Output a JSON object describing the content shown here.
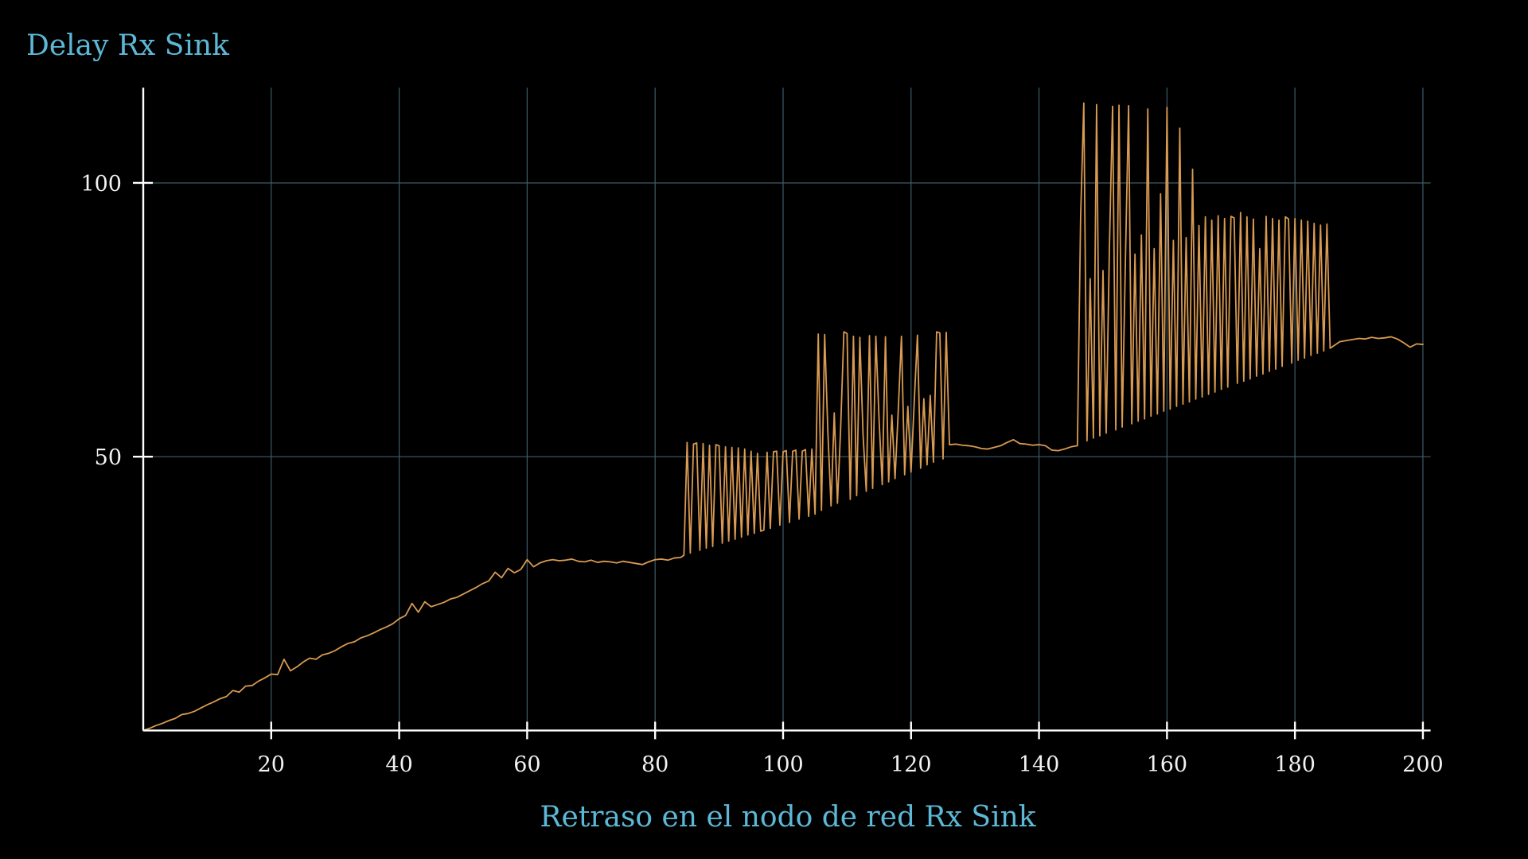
{
  "chart_data": {
    "type": "line",
    "title": "Delay Rx Sink",
    "xlabel": "Retraso en el nodo de red Rx Sink",
    "xlim": [
      0,
      201.2
    ],
    "ylim": [
      0,
      117.4
    ],
    "xticks": [
      20,
      40,
      60,
      80,
      100,
      120,
      140,
      160,
      180,
      200
    ],
    "yticks": [
      50,
      100
    ],
    "grid": true,
    "legend": "none",
    "colors": {
      "background": "#000000",
      "title": "#5cb8d6",
      "line": "#d99a52",
      "axis": "#ffffff",
      "grid": "#3d5c69",
      "tick_label": "#f2f2f2"
    },
    "series": [
      {
        "points": [
          [
            0,
            0
          ],
          [
            1,
            0.4
          ],
          [
            2,
            0.9
          ],
          [
            3,
            1.3
          ],
          [
            4,
            1.8
          ],
          [
            5,
            2.2
          ],
          [
            6,
            2.9
          ],
          [
            7,
            3.1
          ],
          [
            8,
            3.5
          ],
          [
            9,
            4.1
          ],
          [
            10,
            4.7
          ],
          [
            11,
            5.2
          ],
          [
            12,
            5.8
          ],
          [
            13,
            6.2
          ],
          [
            14,
            7.3
          ],
          [
            15,
            7.0
          ],
          [
            16,
            8.1
          ],
          [
            17,
            8.2
          ],
          [
            18,
            9.0
          ],
          [
            19,
            9.6
          ],
          [
            20,
            10.3
          ],
          [
            21,
            10.2
          ],
          [
            22,
            13.0
          ],
          [
            23,
            10.9
          ],
          [
            24,
            11.6
          ],
          [
            25,
            12.5
          ],
          [
            26,
            13.2
          ],
          [
            27,
            13.0
          ],
          [
            28,
            13.8
          ],
          [
            29,
            14.1
          ],
          [
            30,
            14.6
          ],
          [
            31,
            15.3
          ],
          [
            32,
            15.9
          ],
          [
            33,
            16.2
          ],
          [
            34,
            16.9
          ],
          [
            35,
            17.3
          ],
          [
            36,
            17.8
          ],
          [
            37,
            18.4
          ],
          [
            38,
            18.9
          ],
          [
            39,
            19.5
          ],
          [
            40,
            20.4
          ],
          [
            41,
            21.0
          ],
          [
            42,
            23.2
          ],
          [
            43,
            21.6
          ],
          [
            44,
            23.5
          ],
          [
            45,
            22.6
          ],
          [
            46,
            23.0
          ],
          [
            47,
            23.4
          ],
          [
            48,
            24.0
          ],
          [
            49,
            24.3
          ],
          [
            50,
            24.9
          ],
          [
            51,
            25.5
          ],
          [
            52,
            26.1
          ],
          [
            53,
            26.8
          ],
          [
            54,
            27.3
          ],
          [
            55,
            28.9
          ],
          [
            56,
            27.9
          ],
          [
            57,
            29.6
          ],
          [
            58,
            28.8
          ],
          [
            59,
            29.4
          ],
          [
            60,
            31.2
          ],
          [
            61,
            29.9
          ],
          [
            62,
            30.6
          ],
          [
            63,
            31.0
          ],
          [
            64,
            31.2
          ],
          [
            65,
            31.0
          ],
          [
            66,
            31.1
          ],
          [
            67,
            31.3
          ],
          [
            68,
            30.9
          ],
          [
            69,
            30.8
          ],
          [
            70,
            31.1
          ],
          [
            71,
            30.7
          ],
          [
            72,
            30.9
          ],
          [
            73,
            30.8
          ],
          [
            74,
            30.6
          ],
          [
            75,
            30.9
          ],
          [
            76,
            30.7
          ],
          [
            77,
            30.5
          ],
          [
            78,
            30.3
          ],
          [
            79,
            30.8
          ],
          [
            80,
            31.2
          ],
          [
            81,
            31.3
          ],
          [
            82,
            31.1
          ],
          [
            83,
            31.5
          ],
          [
            84,
            31.6
          ],
          [
            84.5,
            32.0
          ],
          [
            85,
            52.6
          ],
          [
            85.5,
            32.4
          ],
          [
            86,
            52.3
          ],
          [
            86.5,
            52.5
          ],
          [
            87,
            32.9
          ],
          [
            87.5,
            52.4
          ],
          [
            88,
            33.3
          ],
          [
            88.5,
            52.1
          ],
          [
            89,
            33.6
          ],
          [
            89.5,
            52.2
          ],
          [
            90,
            52.0
          ],
          [
            90.5,
            34.2
          ],
          [
            91,
            51.8
          ],
          [
            91.5,
            34.6
          ],
          [
            92,
            51.7
          ],
          [
            92.5,
            34.9
          ],
          [
            93,
            51.6
          ],
          [
            93.5,
            35.3
          ],
          [
            94,
            51.4
          ],
          [
            94.5,
            35.7
          ],
          [
            95,
            51.0
          ],
          [
            95.5,
            36.0
          ],
          [
            96,
            50.6
          ],
          [
            96.5,
            36.4
          ],
          [
            97,
            36.6
          ],
          [
            97.5,
            50.8
          ],
          [
            98,
            36.9
          ],
          [
            98.5,
            50.9
          ],
          [
            99,
            51.0
          ],
          [
            99.5,
            37.5
          ],
          [
            100,
            50.9
          ],
          [
            100.5,
            51.1
          ],
          [
            101,
            38.0
          ],
          [
            101.5,
            51.0
          ],
          [
            102,
            51.2
          ],
          [
            102.5,
            38.6
          ],
          [
            103,
            51.0
          ],
          [
            103.5,
            51.3
          ],
          [
            104,
            39.1
          ],
          [
            104.5,
            51.4
          ],
          [
            105,
            39.5
          ],
          [
            105.5,
            72.4
          ],
          [
            106,
            40.2
          ],
          [
            106.5,
            72.3
          ],
          [
            107,
            54.5
          ],
          [
            107.5,
            41.0
          ],
          [
            108,
            58.0
          ],
          [
            108.5,
            41.5
          ],
          [
            109,
            55.2
          ],
          [
            109.5,
            72.8
          ],
          [
            110,
            72.5
          ],
          [
            110.5,
            42.2
          ],
          [
            111,
            72.0
          ],
          [
            111.5,
            42.9
          ],
          [
            112,
            71.8
          ],
          [
            112.5,
            54.0
          ],
          [
            113,
            43.7
          ],
          [
            113.5,
            72.1
          ],
          [
            114,
            44.2
          ],
          [
            114.5,
            72.0
          ],
          [
            115,
            56.8
          ],
          [
            115.5,
            44.9
          ],
          [
            116,
            71.9
          ],
          [
            116.5,
            45.4
          ],
          [
            117,
            57.6
          ],
          [
            117.5,
            46.0
          ],
          [
            118,
            58.4
          ],
          [
            118.5,
            72.0
          ],
          [
            119,
            46.7
          ],
          [
            119.5,
            59.2
          ],
          [
            120,
            47.2
          ],
          [
            120.5,
            60.0
          ],
          [
            121,
            72.2
          ],
          [
            121.5,
            47.9
          ],
          [
            122,
            60.6
          ],
          [
            122.5,
            48.5
          ],
          [
            123,
            61.2
          ],
          [
            123.5,
            49.0
          ],
          [
            124,
            72.8
          ],
          [
            124.5,
            72.6
          ],
          [
            125,
            49.6
          ],
          [
            125.5,
            72.7
          ],
          [
            126,
            52.2
          ],
          [
            127,
            52.3
          ],
          [
            128,
            52.1
          ],
          [
            129,
            52.0
          ],
          [
            130,
            51.8
          ],
          [
            131,
            51.5
          ],
          [
            132,
            51.4
          ],
          [
            133,
            51.7
          ],
          [
            134,
            52.0
          ],
          [
            135,
            52.6
          ],
          [
            136,
            53.1
          ],
          [
            137,
            52.4
          ],
          [
            138,
            52.3
          ],
          [
            139,
            52.1
          ],
          [
            140,
            52.2
          ],
          [
            141,
            52.0
          ],
          [
            142,
            51.2
          ],
          [
            143,
            51.1
          ],
          [
            144,
            51.4
          ],
          [
            145,
            51.8
          ],
          [
            146,
            52.0
          ],
          [
            146.5,
            93.5
          ],
          [
            147,
            114.6
          ],
          [
            147.5,
            52.9
          ],
          [
            148,
            82.5
          ],
          [
            148.5,
            53.4
          ],
          [
            149,
            114.3
          ],
          [
            149.5,
            53.8
          ],
          [
            150,
            84.0
          ],
          [
            150.5,
            54.3
          ],
          [
            151,
            88.0
          ],
          [
            151.5,
            114.0
          ],
          [
            152,
            54.9
          ],
          [
            152.5,
            114.2
          ],
          [
            153,
            55.4
          ],
          [
            153.5,
            85.5
          ],
          [
            154,
            114.1
          ],
          [
            154.5,
            56.0
          ],
          [
            155,
            87.0
          ],
          [
            155.5,
            56.5
          ],
          [
            156,
            90.5
          ],
          [
            156.5,
            56.9
          ],
          [
            157,
            113.5
          ],
          [
            157.5,
            57.4
          ],
          [
            158,
            88.0
          ],
          [
            158.5,
            57.8
          ],
          [
            159,
            98.0
          ],
          [
            159.5,
            58.3
          ],
          [
            160,
            113.8
          ],
          [
            160.5,
            58.7
          ],
          [
            161,
            89.5
          ],
          [
            161.5,
            59.2
          ],
          [
            162,
            110.0
          ],
          [
            162.5,
            59.6
          ],
          [
            163,
            90.0
          ],
          [
            163.5,
            60.0
          ],
          [
            164,
            102.5
          ],
          [
            164.5,
            60.5
          ],
          [
            165,
            92.2
          ],
          [
            165.5,
            60.9
          ],
          [
            166,
            93.8
          ],
          [
            166.5,
            61.4
          ],
          [
            167,
            93.2
          ],
          [
            167.5,
            61.8
          ],
          [
            168,
            94.0
          ],
          [
            168.5,
            62.3
          ],
          [
            169,
            93.5
          ],
          [
            169.5,
            62.7
          ],
          [
            170,
            93.9
          ],
          [
            170.5,
            93.6
          ],
          [
            171,
            63.4
          ],
          [
            171.5,
            94.6
          ],
          [
            172,
            63.8
          ],
          [
            172.5,
            93.8
          ],
          [
            173,
            64.2
          ],
          [
            173.5,
            93.4
          ],
          [
            174,
            64.7
          ],
          [
            174.5,
            88.0
          ],
          [
            175,
            65.1
          ],
          [
            175.5,
            93.9
          ],
          [
            176,
            65.6
          ],
          [
            176.5,
            93.5
          ],
          [
            177,
            66.0
          ],
          [
            177.5,
            93.2
          ],
          [
            178,
            66.5
          ],
          [
            178.5,
            93.8
          ],
          [
            179,
            93.4
          ],
          [
            179.5,
            67.1
          ],
          [
            180,
            93.5
          ],
          [
            180.5,
            67.6
          ],
          [
            181,
            93.2
          ],
          [
            181.5,
            68.0
          ],
          [
            182,
            93.0
          ],
          [
            182.5,
            68.5
          ],
          [
            183,
            92.6
          ],
          [
            183.5,
            68.9
          ],
          [
            184,
            92.3
          ],
          [
            184.5,
            69.3
          ],
          [
            185,
            92.5
          ],
          [
            185.5,
            69.8
          ],
          [
            186,
            70.2
          ],
          [
            187,
            71.0
          ],
          [
            188,
            71.2
          ],
          [
            189,
            71.4
          ],
          [
            190,
            71.6
          ],
          [
            191,
            71.5
          ],
          [
            192,
            71.8
          ],
          [
            193,
            71.6
          ],
          [
            194,
            71.7
          ],
          [
            195,
            71.9
          ],
          [
            196,
            71.5
          ],
          [
            197,
            70.8
          ],
          [
            198,
            70.0
          ],
          [
            199,
            70.6
          ],
          [
            200,
            70.5
          ]
        ]
      }
    ]
  }
}
